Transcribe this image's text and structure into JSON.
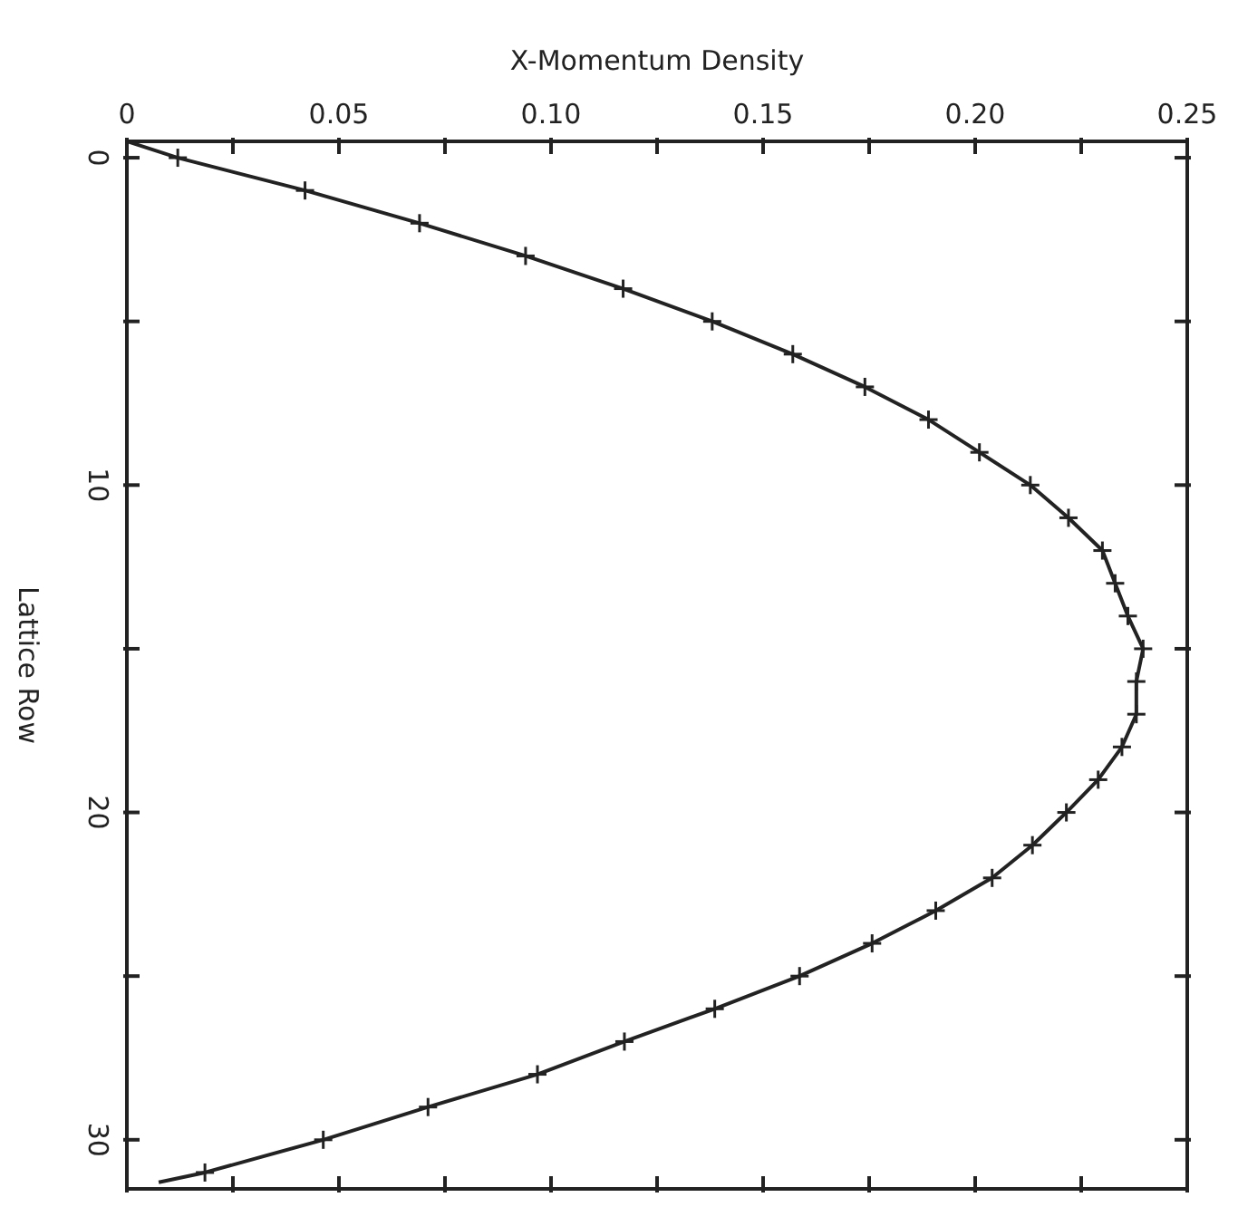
{
  "chart_data": {
    "type": "scatter",
    "xlabel": "X-Momentum Density",
    "ylabel": "Lattice Row",
    "xlim": [
      0,
      0.25
    ],
    "xticks": [
      0,
      {
        "value": 0.025,
        "label": null
      },
      0.05,
      {
        "value": 0.075,
        "label": null
      },
      {
        "value": 0.1,
        "label": "0.10"
      },
      {
        "value": 0.125,
        "label": null
      },
      0.15,
      {
        "value": 0.175,
        "label": null
      },
      {
        "value": 0.2,
        "label": "0.20"
      },
      {
        "value": 0.225,
        "label": null
      },
      0.25
    ],
    "ylim": [
      31.5,
      -0.5
    ],
    "yticks": [
      0,
      {
        "value": 5,
        "label": null
      },
      10,
      {
        "value": 15,
        "label": null
      },
      20,
      {
        "value": 25,
        "label": null
      },
      30
    ],
    "grid": false,
    "legend": false,
    "series": [
      {
        "type": "line",
        "color": "#222222",
        "marker": "none",
        "line_style": "solid",
        "x": [
          0,
          0.012,
          0.042,
          0.069,
          0.094,
          0.117,
          0.138,
          0.157,
          0.174,
          0.189,
          0.201,
          0.213,
          0.222,
          0.23,
          0.233,
          0.236,
          0.2396,
          0.238,
          0.238,
          0.2346,
          0.229,
          0.2215,
          0.2135,
          0.204,
          0.1907,
          0.1757,
          0.1586,
          0.1386,
          0.1173,
          0.0968,
          0.071,
          0.0463,
          0.0184,
          0.0075
        ],
        "values": [
          -0.5,
          0,
          1,
          2,
          3,
          4,
          5,
          6,
          7,
          8,
          9,
          10,
          11,
          12,
          13,
          14,
          15,
          16,
          17,
          18,
          19,
          20,
          21,
          22,
          23,
          24,
          25,
          26,
          27,
          28,
          29,
          30,
          31,
          31.3
        ]
      },
      {
        "color": "#222222",
        "marker": "cross",
        "x": [
          0.012,
          0.042,
          0.069,
          0.094,
          0.117,
          0.138,
          0.157,
          0.174,
          0.189,
          0.201,
          0.213,
          0.222,
          0.23,
          0.233,
          0.236,
          0.2396,
          0.238,
          0.238,
          0.2346,
          0.229,
          0.2215,
          0.2135,
          0.204,
          0.1907,
          0.1757,
          0.1586,
          0.1386,
          0.1173,
          0.0968,
          0.071,
          0.0463,
          0.0184
        ],
        "values": [
          0,
          1,
          2,
          3,
          4,
          5,
          6,
          7,
          8,
          9,
          10,
          11,
          12,
          13,
          14,
          15,
          16,
          17,
          18,
          19,
          20,
          21,
          22,
          23,
          24,
          25,
          26,
          27,
          28,
          29,
          30,
          31
        ]
      }
    ]
  }
}
